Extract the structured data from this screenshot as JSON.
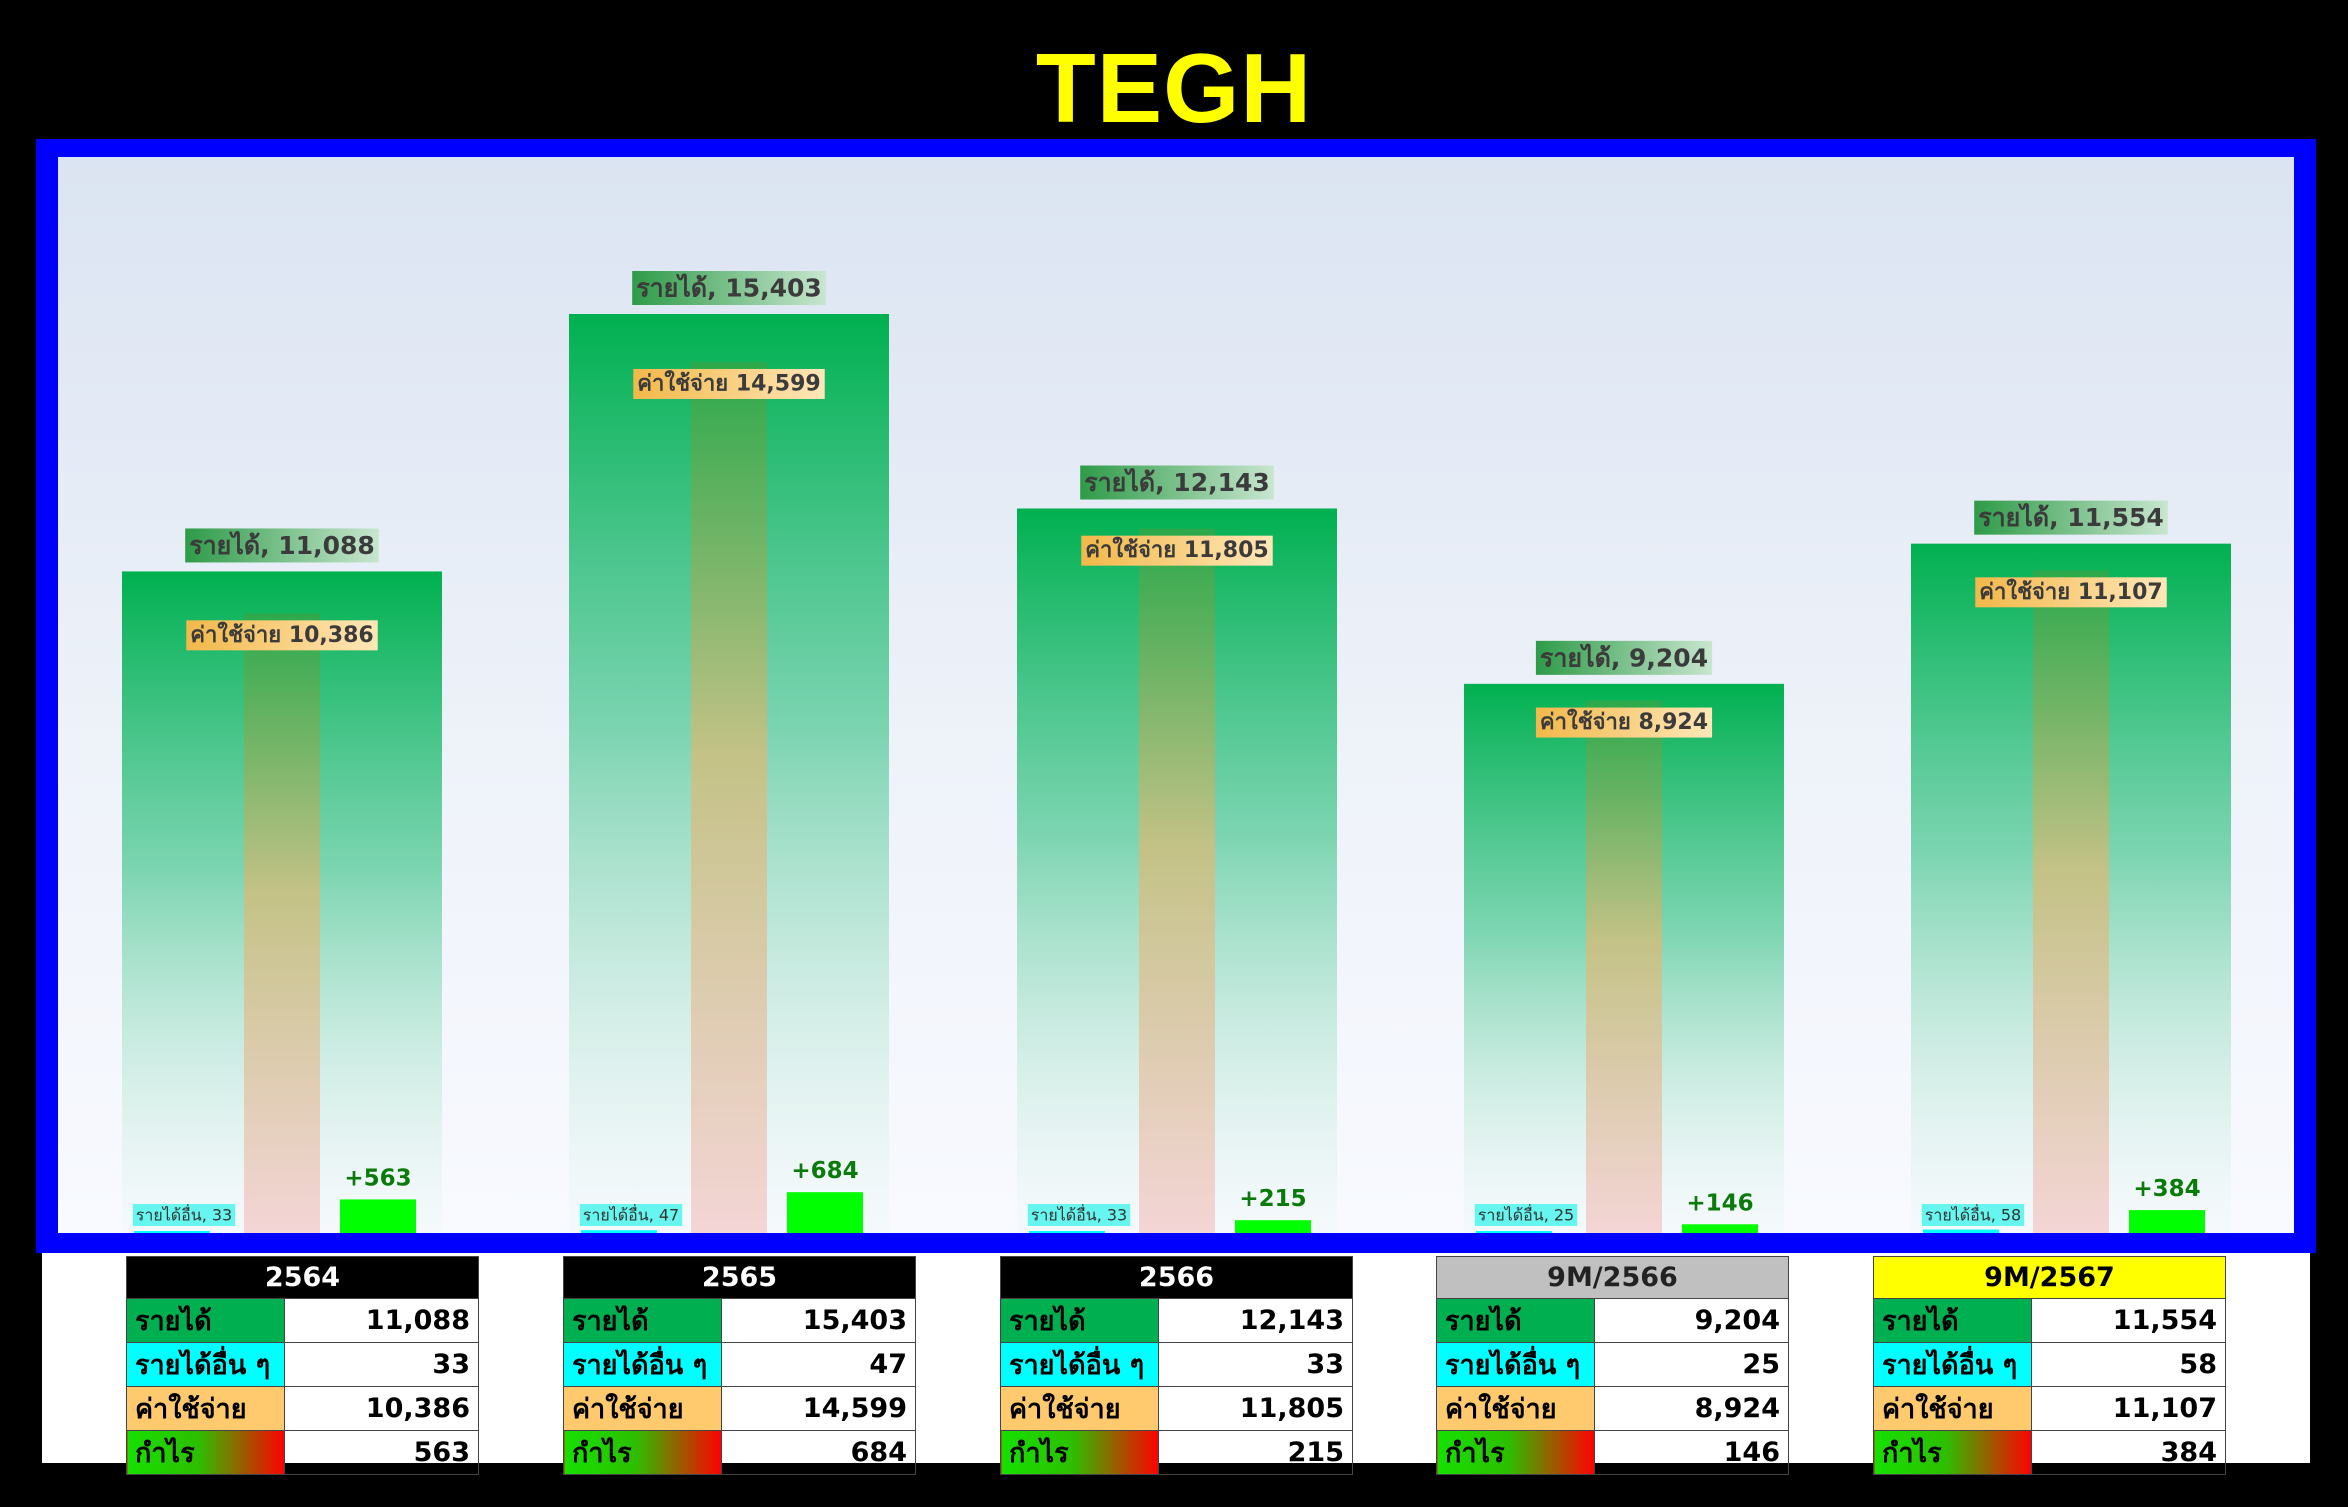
{
  "title": "TEGH",
  "colors": {
    "background": "#000000",
    "title": "#ffff00",
    "frame": "#0000ff",
    "revenue": "#00b050",
    "other_income": "#00ffff",
    "expense": "#ffc96e",
    "profit": "#00ff00"
  },
  "chart_data": {
    "type": "bar",
    "categories": [
      "2564",
      "2565",
      "2566",
      "9M/2566",
      "9M/2567"
    ],
    "ylim": [
      0,
      15403
    ],
    "grid": false,
    "series": [
      {
        "name": "รายได้",
        "values": [
          11088,
          15403,
          12143,
          9204,
          11554
        ]
      },
      {
        "name": "ค่าใช้จ่าย",
        "values": [
          10386,
          14599,
          11805,
          8924,
          11107
        ]
      },
      {
        "name": "รายได้อื่น",
        "values": [
          33,
          47,
          33,
          25,
          58
        ]
      },
      {
        "name": "กำไร",
        "values": [
          563,
          684,
          215,
          146,
          384
        ]
      }
    ],
    "data_labels": {
      "revenue": [
        "รายได้, 11,088",
        "รายได้, 15,403",
        "รายได้, 12,143",
        "รายได้, 9,204",
        "รายได้, 11,554"
      ],
      "expense": [
        "ค่าใช้จ่าย 10,386",
        "ค่าใช้จ่าย 14,599",
        "ค่าใช้จ่าย 11,805",
        "ค่าใช้จ่าย 8,924",
        "ค่าใช้จ่าย 11,107"
      ],
      "other_income": [
        "รายได้อื่น, 33",
        "รายได้อื่น, 47",
        "รายได้อื่น, 33",
        "รายได้อื่น, 25",
        "รายได้อื่น, 58"
      ],
      "profit": [
        "+563",
        "+684",
        "+215",
        "+146",
        "+384"
      ]
    }
  },
  "tables": [
    {
      "period": "2564",
      "header_bg": "#000000",
      "header_fg": "#ffffff",
      "rows": [
        {
          "label": "รายได้",
          "value": "11,088"
        },
        {
          "label": "รายได้อื่น ๆ",
          "value": "33"
        },
        {
          "label": "ค่าใช้จ่าย",
          "value": "10,386"
        },
        {
          "label": "กำไร",
          "value": "563"
        }
      ]
    },
    {
      "period": "2565",
      "header_bg": "#000000",
      "header_fg": "#ffffff",
      "rows": [
        {
          "label": "รายได้",
          "value": "15,403"
        },
        {
          "label": "รายได้อื่น ๆ",
          "value": "47"
        },
        {
          "label": "ค่าใช้จ่าย",
          "value": "14,599"
        },
        {
          "label": "กำไร",
          "value": "684"
        }
      ]
    },
    {
      "period": "2566",
      "header_bg": "#000000",
      "header_fg": "#ffffff",
      "rows": [
        {
          "label": "รายได้",
          "value": "12,143"
        },
        {
          "label": "รายได้อื่น ๆ",
          "value": "33"
        },
        {
          "label": "ค่าใช้จ่าย",
          "value": "11,805"
        },
        {
          "label": "กำไร",
          "value": "215"
        }
      ]
    },
    {
      "period": "9M/2566",
      "header_bg": "#c0c0c0",
      "header_fg": "#222222",
      "rows": [
        {
          "label": "รายได้",
          "value": "9,204"
        },
        {
          "label": "รายได้อื่น ๆ",
          "value": "25"
        },
        {
          "label": "ค่าใช้จ่าย",
          "value": "8,924"
        },
        {
          "label": "กำไร",
          "value": "146"
        }
      ]
    },
    {
      "period": "9M/2567",
      "header_bg": "#ffff00",
      "header_fg": "#000000",
      "rows": [
        {
          "label": "รายได้",
          "value": "11,554"
        },
        {
          "label": "รายได้อื่น ๆ",
          "value": "58"
        },
        {
          "label": "ค่าใช้จ่าย",
          "value": "11,107"
        },
        {
          "label": "กำไร",
          "value": "384"
        }
      ]
    }
  ]
}
